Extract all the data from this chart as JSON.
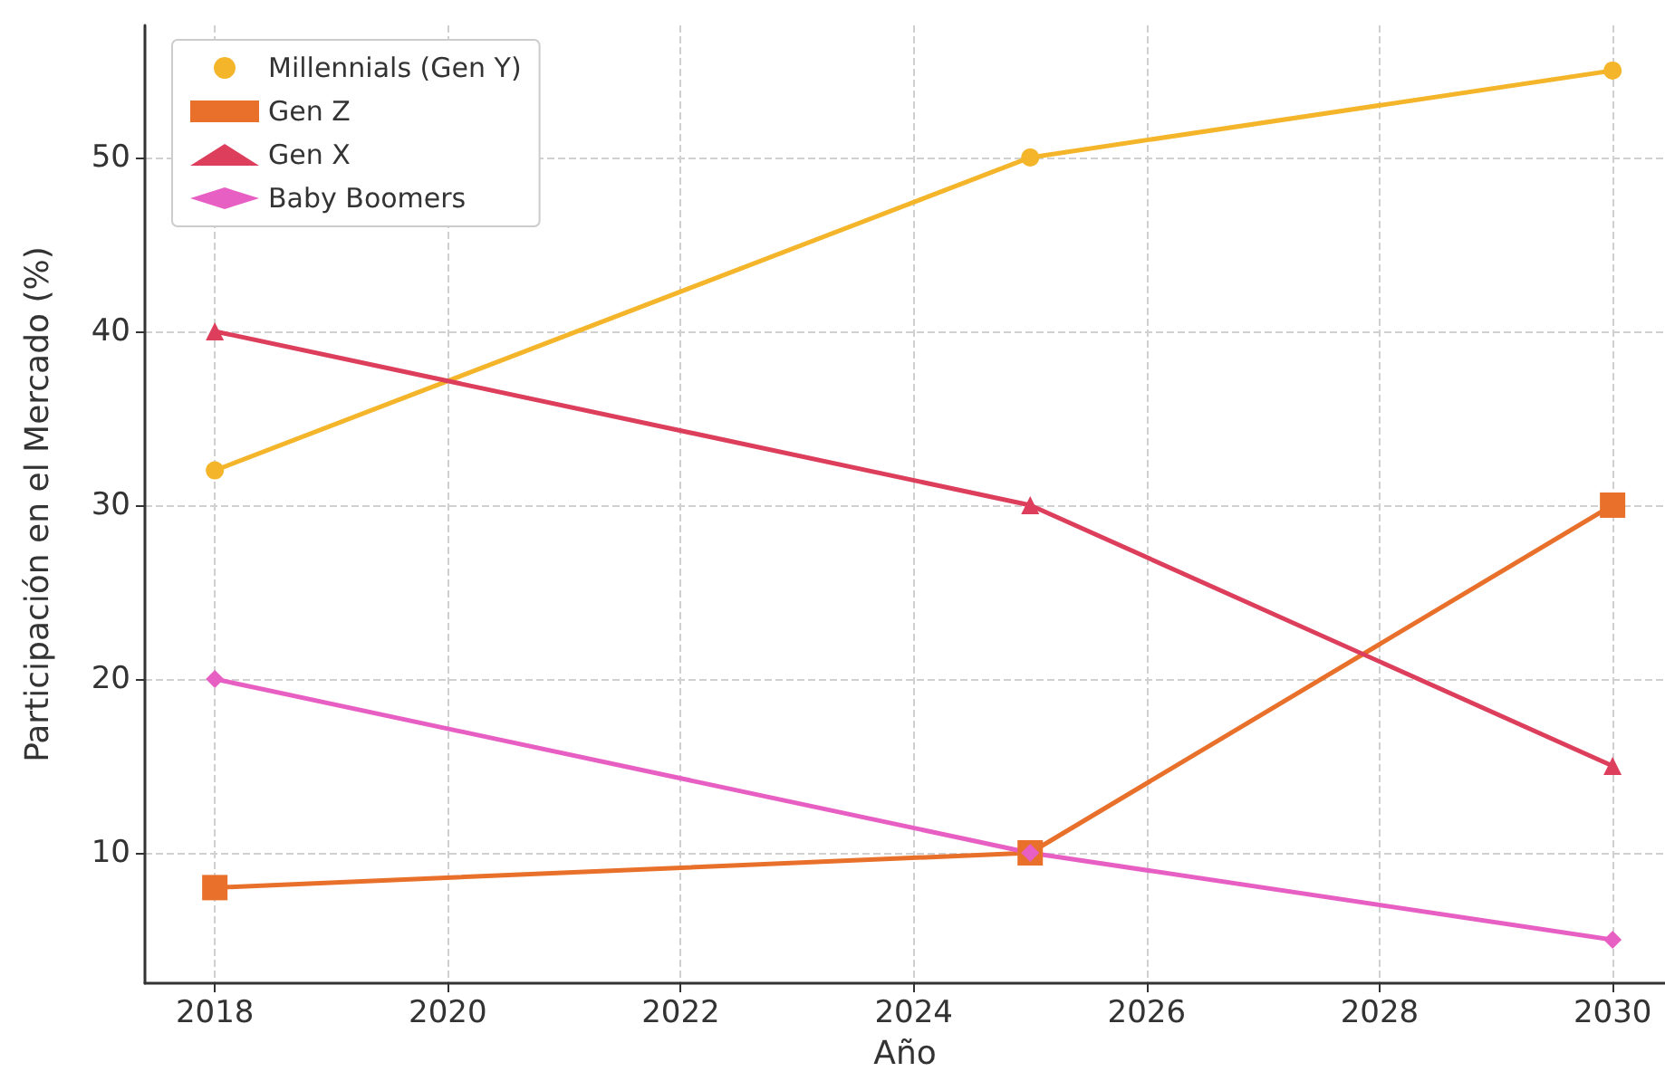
{
  "chart_data": {
    "type": "line",
    "xlabel": "Año",
    "ylabel": "Participación en el Mercado (%)",
    "x": [
      2018,
      2025,
      2030
    ],
    "xlim": [
      2017.4,
      2030.45
    ],
    "xticks": [
      2018,
      2020,
      2022,
      2024,
      2026,
      2028,
      2030
    ],
    "ylim": [
      2.5,
      57.6
    ],
    "yticks": [
      10,
      20,
      30,
      40,
      50
    ],
    "grid": true,
    "legend": "top left",
    "line_style": "solid",
    "series": [
      {
        "name": "Millennials (Gen Y)",
        "color": "#f4b52a",
        "marker": "circle",
        "values": [
          32,
          50,
          55
        ]
      },
      {
        "name": "Gen Z",
        "color": "#e8702a",
        "marker": "square",
        "values": [
          8,
          10,
          30
        ]
      },
      {
        "name": "Gen X",
        "color": "#dc3e5b",
        "marker": "triangle",
        "values": [
          40,
          30,
          15
        ]
      },
      {
        "name": "Baby Boomers",
        "color": "#e85fc4",
        "marker": "diamond",
        "values": [
          20,
          10,
          5
        ]
      }
    ]
  }
}
